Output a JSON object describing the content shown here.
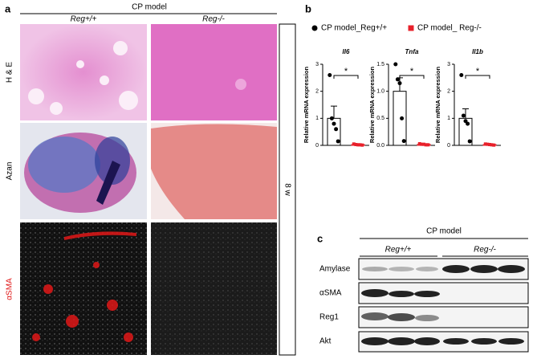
{
  "panel_a": {
    "label": "a",
    "group": "CP model",
    "columns": [
      "Reg+/+",
      "Reg-/-"
    ],
    "rows": [
      "H & E",
      "Azan",
      "αSMA"
    ],
    "timepoint": "8 w"
  },
  "panel_b": {
    "label": "b"
  },
  "chart_data": [
    {
      "type": "bar",
      "title": "Il6",
      "y_label": "Relative mRNA expression",
      "ylim": [
        0,
        3
      ],
      "yticks": [
        0,
        1,
        2,
        3
      ],
      "annotation": "*",
      "series": [
        {
          "name": "CP model_Reg+/+",
          "color": "#000000",
          "values": [
            1.0
          ],
          "errors": [
            0.45
          ],
          "points": [
            2.6,
            1.0,
            0.8,
            0.6,
            0.15
          ]
        },
        {
          "name": "CP model_ Reg-/-",
          "color": "#e8202a",
          "values": [
            0.03
          ],
          "errors": [
            0.02
          ],
          "points": [
            0.05,
            0.03,
            0.02,
            0.02,
            0.01
          ]
        }
      ]
    },
    {
      "type": "bar",
      "title": "Tnfa",
      "y_label": "Relative mRNA expression",
      "ylim": [
        0,
        1.5
      ],
      "yticks": [
        {
          "value": 0,
          "label": "0.0"
        },
        {
          "value": 0.5,
          "label": "0.5"
        },
        {
          "value": 1,
          "label": "1.0"
        },
        {
          "value": 1.5,
          "label": "1.5"
        }
      ],
      "annotation": "*",
      "series": [
        {
          "color": "#000000",
          "values": [
            1.0
          ],
          "errors": [
            0.25
          ],
          "points": [
            1.5,
            1.22,
            1.15,
            0.5,
            0.08
          ]
        },
        {
          "color": "#e8202a",
          "values": [
            0.02
          ],
          "errors": [
            0.01
          ],
          "points": [
            0.03,
            0.02,
            0.02,
            0.01,
            0.01
          ]
        }
      ]
    },
    {
      "type": "bar",
      "title": "Il1b",
      "y_label": "Relative mRNA expression",
      "ylim": [
        0,
        3
      ],
      "yticks": [
        0,
        1,
        2,
        3
      ],
      "annotation": "*",
      "series": [
        {
          "color": "#000000",
          "values": [
            1.0
          ],
          "errors": [
            0.35
          ],
          "points": [
            2.6,
            1.1,
            0.9,
            0.8,
            0.15
          ]
        },
        {
          "color": "#e8202a",
          "values": [
            0.03
          ],
          "errors": [
            0.02
          ],
          "points": [
            0.05,
            0.04,
            0.03,
            0.02,
            0.01
          ]
        }
      ]
    }
  ],
  "panel_c": {
    "label": "c",
    "group": "CP model",
    "columns": [
      "Reg+/+",
      "Reg-/-"
    ],
    "rows": [
      "Amylase",
      "αSMA",
      "Reg1",
      "Akt"
    ]
  }
}
